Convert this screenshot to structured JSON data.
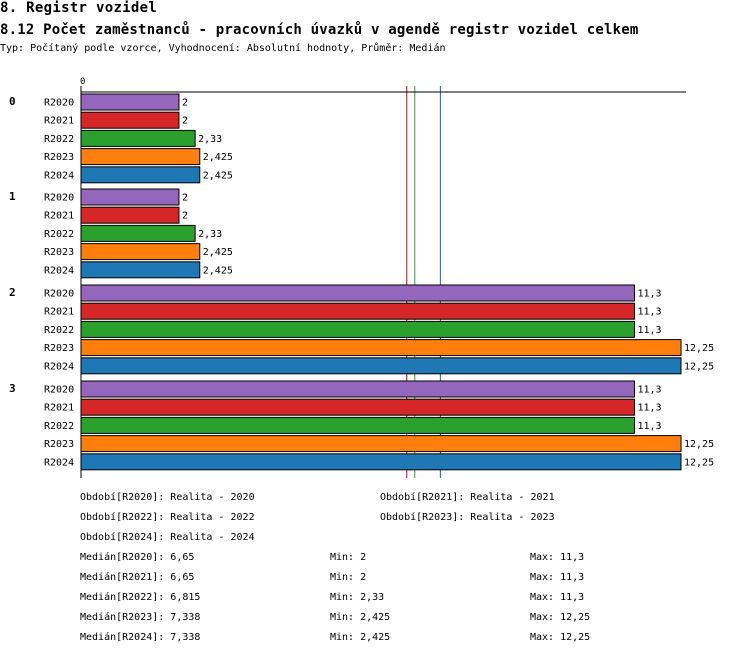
{
  "header": {
    "section": "8. Registr vozidel",
    "title": "8.12 Počet zaměstnanců - pracovních úvazků v agendě registr vozidel celkem",
    "subtitle": "Typ: Počítaný podle vzorce, Vyhodnocení: Absolutní hodnoty, Průměr: Medián"
  },
  "chart_data": {
    "type": "bar",
    "orientation": "horizontal",
    "title": "8.12 Počet zaměstnanců - pracovních úvazků v agendě registr vozidel celkem",
    "axis_zero_label": "0",
    "xlim": [
      0,
      12.25
    ],
    "groups": [
      "0",
      "1",
      "2",
      "3"
    ],
    "series": [
      {
        "name": "R2020",
        "color": "#9467bd",
        "values": [
          2,
          2,
          11.3,
          11.3
        ],
        "labels": [
          "2",
          "2",
          "11,3",
          "11,3"
        ]
      },
      {
        "name": "R2021",
        "color": "#d62728",
        "values": [
          2,
          2,
          11.3,
          11.3
        ],
        "labels": [
          "2",
          "2",
          "11,3",
          "11,3"
        ]
      },
      {
        "name": "R2022",
        "color": "#2ca02c",
        "values": [
          2.33,
          2.33,
          11.3,
          11.3
        ],
        "labels": [
          "2,33",
          "2,33",
          "11,3",
          "11,3"
        ]
      },
      {
        "name": "R2023",
        "color": "#ff7f0e",
        "values": [
          2.425,
          2.425,
          12.25,
          12.25
        ],
        "labels": [
          "2,425",
          "2,425",
          "12,25",
          "12,25"
        ]
      },
      {
        "name": "R2024",
        "color": "#1f77b4",
        "values": [
          2.425,
          2.425,
          12.25,
          12.25
        ],
        "labels": [
          "2,425",
          "2,425",
          "12,25",
          "12,25"
        ]
      }
    ],
    "median_lines": [
      {
        "series": "R2020",
        "value": 6.65,
        "color": "#9467bd"
      },
      {
        "series": "R2021",
        "value": 6.65,
        "color": "#d62728"
      },
      {
        "series": "R2022",
        "value": 6.815,
        "color": "#2ca02c"
      },
      {
        "series": "R2023",
        "value": 7.338,
        "color": "#ff7f0e"
      },
      {
        "series": "R2024",
        "value": 7.338,
        "color": "#1f77b4"
      }
    ]
  },
  "legend": {
    "periods": [
      "Období[R2020]: Realita - 2020",
      "Období[R2021]: Realita - 2021",
      "Období[R2022]: Realita - 2022",
      "Období[R2023]: Realita - 2023",
      "Období[R2024]: Realita - 2024"
    ],
    "stats": [
      {
        "median": "Medián[R2020]: 6,65",
        "min": "Min: 2",
        "max": "Max: 11,3"
      },
      {
        "median": "Medián[R2021]: 6,65",
        "min": "Min: 2",
        "max": "Max: 11,3"
      },
      {
        "median": "Medián[R2022]: 6,815",
        "min": "Min: 2,33",
        "max": "Max: 11,3"
      },
      {
        "median": "Medián[R2023]: 7,338",
        "min": "Min: 2,425",
        "max": "Max: 12,25"
      },
      {
        "median": "Medián[R2024]: 7,338",
        "min": "Min: 2,425",
        "max": "Max: 12,25"
      }
    ]
  }
}
